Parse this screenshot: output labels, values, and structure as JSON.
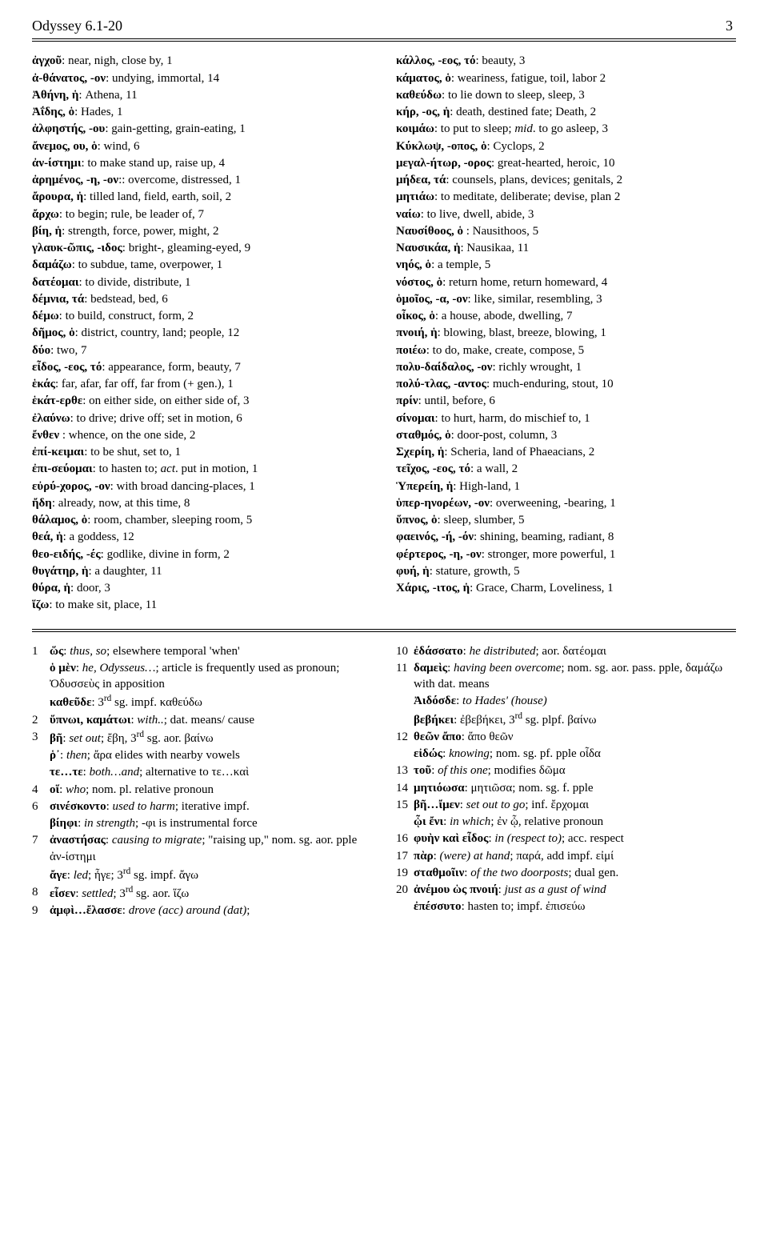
{
  "header": {
    "title": "Odyssey 6.1-20",
    "page": "3"
  },
  "vocab_left": [
    "<b>ἀγχοῦ</b>: near, nigh, close by, 1",
    "<b>ἀ-θάνατος, -ον</b>: undying, immortal, 14",
    "<b>Ἀθήνη, ἡ</b>: Athena, 11",
    "<b>Ἀΐδης, ὁ</b>: Hades, 1",
    "<b>ἀλφηστής, -ου</b>: gain-getting, grain-eating, 1",
    "<b>ἄνεμος, ου, ὁ</b>: wind, 6",
    "<b>ἀν-ίστημι</b>: to make stand up, raise up, 4",
    "<b>ἀρημένος, -η, -ον</b>:: overcome, distressed, 1",
    "<b>ἄρουρα, ἡ</b>: tilled land, field, earth, soil, 2",
    "<b>ἄρχω</b>: to begin; rule, be leader of, 7",
    "<b>βίη, ἡ</b>: strength, force, power, might, 2",
    "<b>γλαυκ-ῶπις, -ιδος</b>: bright-, gleaming-eyed, 9",
    "<b>δαμάζω</b>: to subdue, tame, overpower, 1",
    "<b>δατέομαι</b>: to divide, distribute, 1",
    "<b>δέμνια, τά</b>: bedstead, bed, 6",
    "<b>δέμω</b>: to build, construct, form, 2",
    "<b>δῆμος, ὁ</b>: district, country, land; people, 12",
    "<b>δύο</b>: two, 7",
    "<b>εἶδος, -εος, τό</b>: appearance, form, beauty, 7",
    "<b>ἑκάς</b>: far, afar, far off, far from (+ gen.), 1",
    "<b>ἑκάτ-ερθε</b>: on either side, on either side of, 3",
    "<b>ἐλαύνω</b>: to drive; drive off; set in motion, 6",
    "<b>ἔνθεν</b> : whence, on the one side, 2",
    "<b>ἐπί-κειμαι</b>: to be shut, set to, 1",
    "<b>ἐπι-σεύομαι</b>: to hasten to; <i>act</i>. put in motion, 1",
    "<b>εὐρύ-χορος, -ον</b>: with broad dancing-places, 1",
    "<b>ἤδη</b>: already, now, at this time, 8",
    "<b>θάλαμος, ὁ</b>: room, chamber, sleeping room, 5",
    "<b>θεά, ἡ</b>: a goddess, 12",
    "<b>θεο-ειδής, -ές</b>: godlike, divine in form, 2",
    "<b>θυγάτηρ, ἡ</b>: a daughter, 11",
    "<b>θύρα, ἡ</b>: door, 3",
    "<b>ἵζω</b>: to make sit, place, 11"
  ],
  "vocab_right": [
    "<b>κάλλος, -εος, τό</b>: beauty, 3",
    "<b>κάματος, ὁ</b>: weariness, fatigue, toil, labor 2",
    "<b>καθεύδω</b>: to lie down to sleep, sleep, 3",
    "<b>κήρ, -ος, ἡ</b>: death, destined fate; Death, 2",
    "<b>κοιμάω</b>: to put to sleep; <i>mid</i>. to go asleep, 3",
    "<b>Κύκλωψ, -οπος, ὁ</b>: Cyclops, 2",
    "<b>μεγαλ-ήτωρ, -ορος</b>: great-hearted, heroic, 10",
    "<b>μήδεα, τά</b>: counsels, plans, devices; genitals, 2",
    "<b>μητιάω</b>: to meditate, deliberate; devise, plan 2",
    "<b>ναίω</b>: to live, dwell, abide, 3",
    "<b>Ναυσίθοος, ὁ</b> : Nausithoos, 5",
    "<b>Ναυσικάα, ἡ</b>: Nausikaa, 11",
    "<b>νηός, ὁ</b>: a temple, 5",
    "<b>νόστος, ὁ</b>: return home, return homeward, 4",
    "<b>ὁμοῖος, -α, -ον</b>: like, similar, resembling, 3",
    "<b>οἶκος, ὁ</b>: a house, abode, dwelling, 7",
    "<b>πνοιή, ἡ</b>: blowing, blast, breeze, blowing, 1",
    "<b>ποιέω</b>: to do, make, create, compose, 5",
    "<b>πολυ-δαίδαλος, -ον</b>: richly wrought, 1",
    "<b>πολύ-τλας, -αντος</b>: much-enduring, stout, 10",
    "<b>πρίν</b>: until, before, 6",
    "<b>σίνομαι</b>: to hurt, harm, do mischief to, 1",
    "<b>σταθμός, ὁ</b>: door-post, column, 3",
    "<b>Σχερίη, ἡ</b>: Scheria, land of Phaeacians, 2",
    "<b>τεῖχος, -εος, τό</b>: a wall, 2",
    "<b>Ὑπερείη, ἡ</b>: High-land, 1",
    "<b>ὑπερ-ηνορέων, -ον</b>: overweening, -bearing, 1",
    "<b>ὕπνος, ὁ</b>: sleep, slumber, 5",
    "<b>φαεινός, -ή, -όν</b>: shining, beaming, radiant, 8",
    "<b>φέρτερος, -η, -ον</b>: stronger, more powerful, 1",
    "<b>φυή, ἡ</b>: stature, growth, 5",
    "<b>Χάρις, -ιτος, ἡ</b>: Grace, Charm, Loveliness, 1"
  ],
  "notes_left": [
    {
      "n": "1",
      "t": "<b>ὥς</b>: <i>thus, so</i>; elsewhere temporal 'when'"
    },
    {
      "n": "",
      "t": "<b>ὁ μὲν</b>: <i>he, Odysseus…</i>; article is frequently used as pronoun; Ὀδυσσεὺς in apposition"
    },
    {
      "n": "",
      "t": "<b>καθεῦδε</b>: 3<sup>rd</sup> sg. impf. καθεύδω"
    },
    {
      "n": "2",
      "t": "<b>ὕπνωι, καμάτωι</b>: <i>with..</i>; dat. means/ cause"
    },
    {
      "n": "3",
      "t": "<b>βῆ</b>: <i>set out</i>; ἔβη, 3<sup>rd</sup> sg. aor. βαίνω"
    },
    {
      "n": "",
      "t": "<b>ῥ᾽</b>: <i>then</i>; ἄρα elides with nearby vowels"
    },
    {
      "n": "",
      "t": "<b>τε…τε</b>: <i>both…and</i>; alternative to τε…καὶ"
    },
    {
      "n": "4",
      "t": "<b>οἵ</b>: <i>who</i>; nom. pl. relative pronoun"
    },
    {
      "n": "6",
      "t": "<b>σινέσκοντο</b>: <i>used to harm</i>; iterative impf."
    },
    {
      "n": "",
      "t": "<b>βίηφι</b>: <i>in strength</i>; -φι is instrumental force"
    },
    {
      "n": "7",
      "t": "<b>ἀναστήσας</b>: <i>causing to migrate</i>; \"raising up,\" nom. sg. aor. pple ἀν-ίστημι"
    },
    {
      "n": "",
      "t": "<b>ἄγε</b>: <i>led</i>; ἦγε; 3<sup>rd</sup> sg. impf. ἄγω"
    },
    {
      "n": "8",
      "t": "<b>εἷσεν</b>: <i>settled</i>; 3<sup>rd</sup> sg. aor. ἵζω"
    },
    {
      "n": "9",
      "t": "<b>ἀμφὶ…ἔλασσε</b>: <i>drove (acc) around (dat)</i>;"
    }
  ],
  "notes_right": [
    {
      "n": "10",
      "t": "<b>ἐδάσσατο</b>: <i>he distributed</i>; aor. δατέομαι"
    },
    {
      "n": "11",
      "t": "<b>δαμεὶς</b>: <i>having been overcome</i>; nom. sg. aor. pass. pple, δαμάζω with dat. means"
    },
    {
      "n": "",
      "t": "<b>Ἀιδόσδε</b>: <i>to Hades' (house)</i>"
    },
    {
      "n": "",
      "t": "<b>βεβήκει</b>: ἐβεβήκει, 3<sup>rd</sup> sg. plpf. βαίνω"
    },
    {
      "n": "12",
      "t": "<b>θεῶν ἄπο</b>: ἄπο θεῶν"
    },
    {
      "n": "",
      "t": "<b>εἰδώς</b>: <i>knowing</i>; nom. sg. pf. pple οἶδα"
    },
    {
      "n": "13",
      "t": "<b>τοῦ</b>: <i>of this one</i>; modifies δῶμα"
    },
    {
      "n": "14",
      "t": "<b>μητιόωσα</b>: μητιῶσα; nom. sg. f. pple"
    },
    {
      "n": "15",
      "t": "<b>βῆ…ἴμεν</b>: <i>set out to go</i>; inf. ἔρχομαι"
    },
    {
      "n": "",
      "t": "<b>ᾧι ἔνι</b>: <i>in which</i>; ἐν ᾧ, relative pronoun"
    },
    {
      "n": "16",
      "t": "<b>φυὴν καὶ εἶδος</b>: <i>in (respect to)</i>; acc. respect"
    },
    {
      "n": "17",
      "t": "<b>πὰρ</b>: <i>(were) at hand</i>; παρά, add impf. εἰμί"
    },
    {
      "n": "19",
      "t": "<b>σταθμοῖιν</b>: <i>of the two doorposts</i>; dual gen."
    },
    {
      "n": "20",
      "t": "<b>ἀνέμου ὡς πνοιή</b>: <i>just as a gust of wind</i>"
    },
    {
      "n": "",
      "t": "<b>ἐπέσσυτο</b>: hasten to; impf. ἐπισεύω"
    }
  ]
}
